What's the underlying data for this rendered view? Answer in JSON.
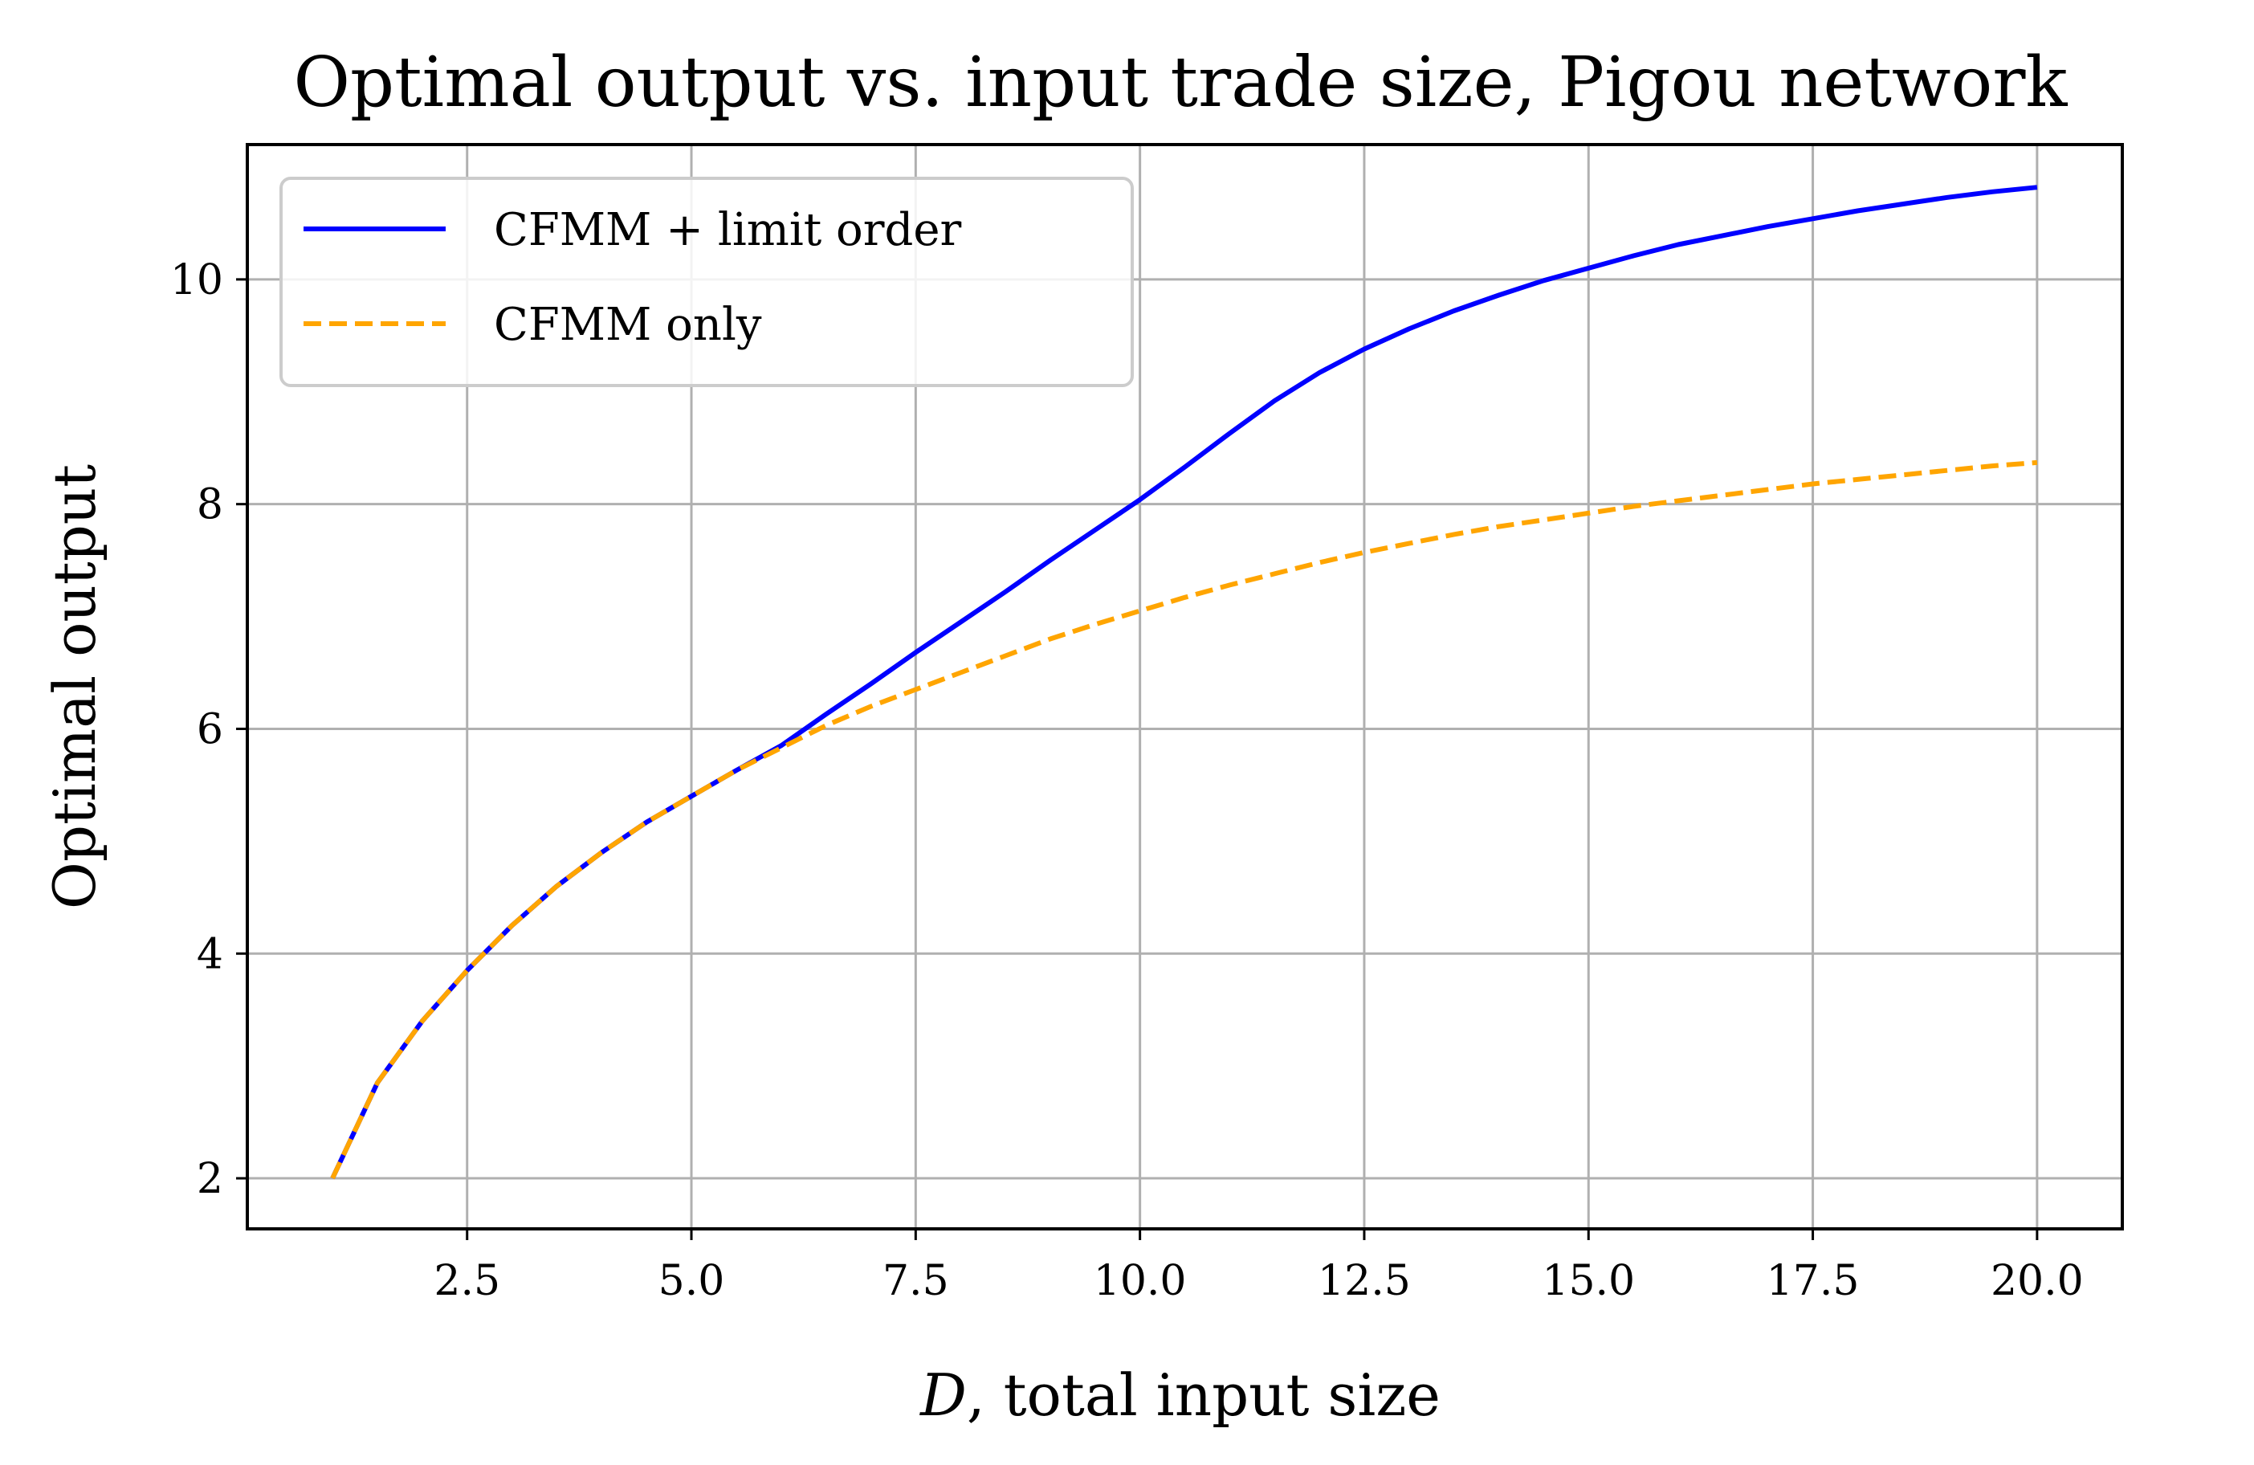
{
  "chart_data": {
    "type": "line",
    "title": "Optimal output vs. input trade size, Pigou network",
    "xlabel_italic": "D",
    "xlabel_rest": ", total input size",
    "ylabel": "Optimal output",
    "xlim": [
      0.05,
      20.95
    ],
    "ylim": [
      1.55,
      11.2
    ],
    "xticks": [
      2.5,
      5.0,
      7.5,
      10.0,
      12.5,
      15.0,
      17.5,
      20.0
    ],
    "xtick_labels": [
      "2.5",
      "5.0",
      "7.5",
      "10.0",
      "12.5",
      "15.0",
      "17.5",
      "20.0"
    ],
    "yticks": [
      2,
      4,
      6,
      8,
      10
    ],
    "ytick_labels": [
      "2",
      "4",
      "6",
      "8",
      "10"
    ],
    "grid": true,
    "legend_position": "upper-left",
    "series": [
      {
        "name": "CFMM + limit order",
        "color": "#0000ff",
        "style": "solid",
        "x": [
          1.0,
          1.5,
          2.0,
          2.5,
          3.0,
          3.5,
          4.0,
          4.5,
          5.0,
          5.5,
          6.0,
          6.5,
          7.0,
          7.5,
          8.0,
          8.5,
          9.0,
          9.5,
          10.0,
          10.5,
          11.0,
          11.5,
          12.0,
          12.5,
          13.0,
          13.5,
          14.0,
          14.5,
          15.0,
          15.5,
          16.0,
          16.5,
          17.0,
          17.5,
          18.0,
          18.5,
          19.0,
          19.5,
          20.0
        ],
        "y": [
          2.0,
          2.85,
          3.4,
          3.85,
          4.25,
          4.6,
          4.9,
          5.17,
          5.4,
          5.63,
          5.85,
          6.13,
          6.4,
          6.68,
          6.95,
          7.22,
          7.5,
          7.77,
          8.04,
          8.33,
          8.63,
          8.92,
          9.17,
          9.38,
          9.56,
          9.72,
          9.86,
          9.99,
          10.1,
          10.21,
          10.31,
          10.39,
          10.47,
          10.54,
          10.61,
          10.67,
          10.73,
          10.78,
          10.82
        ]
      },
      {
        "name": "CFMM only",
        "color": "#ffa500",
        "style": "dashed",
        "x": [
          1.0,
          1.5,
          2.0,
          2.5,
          3.0,
          3.5,
          4.0,
          4.5,
          5.0,
          5.5,
          6.0,
          6.5,
          7.0,
          7.5,
          8.0,
          8.5,
          9.0,
          9.5,
          10.0,
          10.5,
          11.0,
          11.5,
          12.0,
          12.5,
          13.0,
          13.5,
          14.0,
          14.5,
          15.0,
          15.5,
          16.0,
          16.5,
          17.0,
          17.5,
          18.0,
          18.5,
          19.0,
          19.5,
          20.0
        ],
        "y": [
          2.0,
          2.85,
          3.4,
          3.85,
          4.25,
          4.6,
          4.9,
          5.17,
          5.4,
          5.63,
          5.83,
          6.03,
          6.2,
          6.35,
          6.5,
          6.65,
          6.8,
          6.93,
          7.05,
          7.17,
          7.28,
          7.38,
          7.48,
          7.57,
          7.65,
          7.73,
          7.8,
          7.86,
          7.92,
          7.98,
          8.03,
          8.08,
          8.13,
          8.18,
          8.22,
          8.26,
          8.3,
          8.34,
          8.37
        ]
      }
    ]
  }
}
